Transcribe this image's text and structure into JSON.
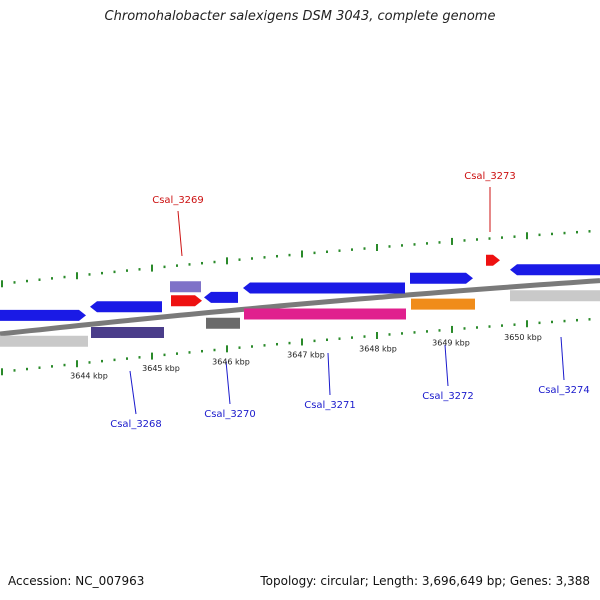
{
  "title": "Chromohalobacter salexigens DSM 3043, complete genome",
  "accession_text": "Accession: NC_007963",
  "topology_text": "Topology: circular; Length: 3,696,649 bp; Genes: 3,388",
  "colors": {
    "backbone": "#7a7a7a",
    "tick": "#2a8a2a",
    "blue": "#1a1ae6",
    "red": "#ee1111",
    "gray": "#c9c9c9",
    "darkgray": "#6a6a6a",
    "purple": "#4a3d8a",
    "lavender": "#7f72c8",
    "magenta": "#e0208e",
    "orange": "#f08c1a",
    "label_blue": "#1a1acc",
    "label_red": "#cc1111"
  },
  "scale_labels": [
    "3644 kbp",
    "3645 kbp",
    "3646 kbp",
    "3647 kbp",
    "3648 kbp",
    "3649 kbp",
    "3650 kbp"
  ],
  "gene_labels": [
    {
      "text": "Csal_3268",
      "color": "label_blue"
    },
    {
      "text": "Csal_3269",
      "color": "label_red"
    },
    {
      "text": "Csal_3270",
      "color": "label_blue"
    },
    {
      "text": "Csal_3271",
      "color": "label_blue"
    },
    {
      "text": "Csal_3272",
      "color": "label_blue"
    },
    {
      "text": "Csal_3273",
      "color": "label_red"
    },
    {
      "text": "Csal_3274",
      "color": "label_blue"
    }
  ]
}
